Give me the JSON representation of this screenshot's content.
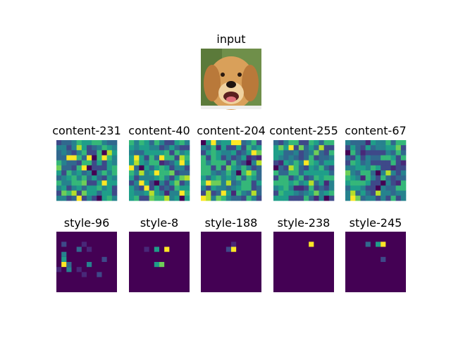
{
  "figure": {
    "input": {
      "title": "input"
    },
    "content_maps": [
      {
        "title": "content-231"
      },
      {
        "title": "content-40"
      },
      {
        "title": "content-204"
      },
      {
        "title": "content-255"
      },
      {
        "title": "content-67"
      }
    ],
    "style_maps": [
      {
        "title": "style-96"
      },
      {
        "title": "style-8"
      },
      {
        "title": "style-188"
      },
      {
        "title": "style-238"
      },
      {
        "title": "style-245"
      }
    ]
  }
}
